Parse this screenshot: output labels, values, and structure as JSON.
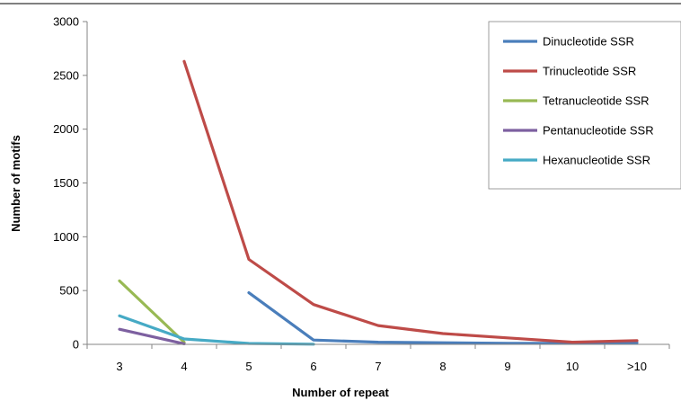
{
  "chart_data": {
    "type": "line",
    "title": "",
    "xlabel": "Number of repeat",
    "ylabel": "Number of motifs",
    "categories": [
      "3",
      "4",
      "5",
      "6",
      "7",
      "8",
      "9",
      "10",
      ">10"
    ],
    "ylim": [
      0,
      3000
    ],
    "yticks": [
      0,
      500,
      1000,
      1500,
      2000,
      2500,
      3000
    ],
    "grid": false,
    "legend_position": "right",
    "series": [
      {
        "name": "Dinucleotide SSR",
        "color": "#4a7ebb",
        "values": [
          null,
          null,
          480,
          40,
          20,
          15,
          10,
          10,
          15
        ]
      },
      {
        "name": "Trinucleotide SSR",
        "color": "#be4b48",
        "values": [
          null,
          2630,
          790,
          370,
          175,
          100,
          60,
          20,
          35
        ]
      },
      {
        "name": "Tetranucleotide SSR",
        "color": "#98b954",
        "values": [
          590,
          20,
          null,
          null,
          null,
          null,
          null,
          null,
          null
        ]
      },
      {
        "name": "Pentanucleotide SSR",
        "color": "#7d60a0",
        "values": [
          140,
          5,
          null,
          null,
          null,
          null,
          null,
          null,
          null
        ]
      },
      {
        "name": "Hexanucleotide SSR",
        "color": "#46aac5",
        "values": [
          265,
          50,
          8,
          2,
          null,
          null,
          null,
          null,
          null
        ]
      }
    ]
  }
}
